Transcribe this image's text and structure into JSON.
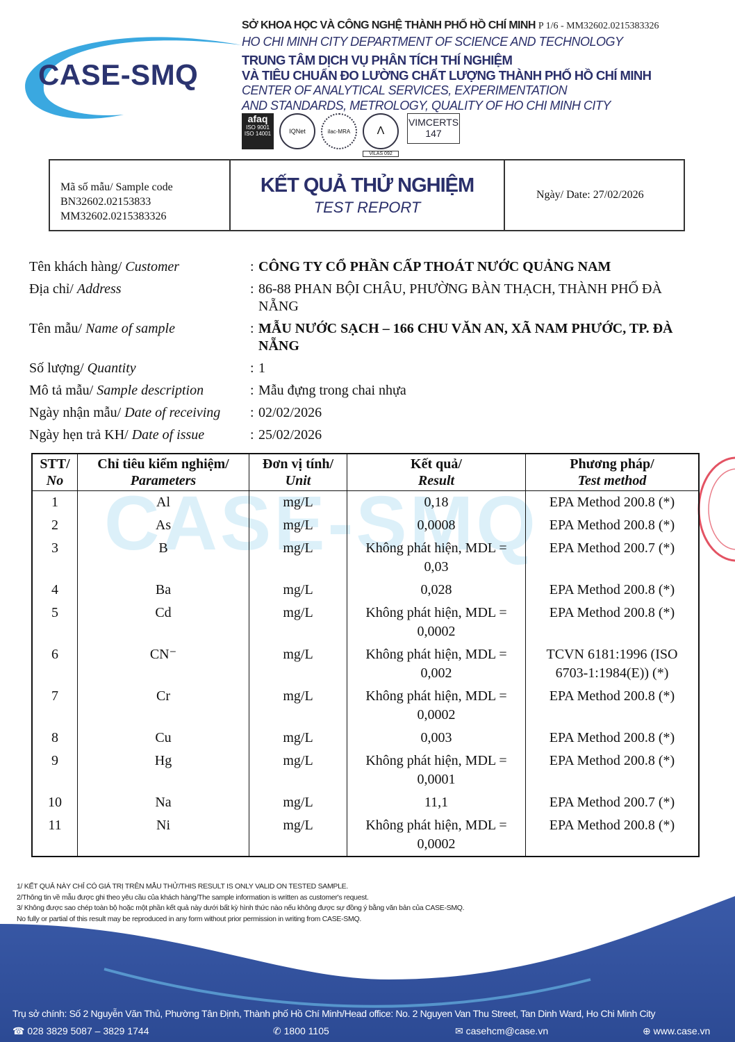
{
  "header": {
    "logo_text": "CASE-SMQ",
    "dept_vn": "SỞ KHOA HỌC VÀ CÔNG NGHỆ THÀNH PHỐ HỒ CHÍ MINH",
    "page_ref": "P 1/6 - MM32602.0215383326",
    "dept_en": "HO CHI MINH CITY DEPARTMENT OF SCIENCE AND TECHNOLOGY",
    "center_vn_1": "TRUNG TÂM DỊCH VỤ PHÂN TÍCH THÍ NGHIỆM",
    "center_vn_2": "VÀ TIÊU CHUẨN ĐO LƯỜNG CHẤT LƯỢNG THÀNH PHỐ HỒ CHÍ MINH",
    "center_en_1": "CENTER OF ANALYTICAL SERVICES, EXPERIMENTATION",
    "center_en_2": "AND STANDARDS, METROLOGY, QUALITY OF HO CHI MINH CITY",
    "certs": {
      "afaq": "afaq",
      "afaq_sub": "ISO 9001 ISO 14001",
      "iqnet": "IQNet",
      "ilac": "ilac-MRA",
      "boa": "VILAS 092",
      "vimcerts": "VIMCERTS",
      "vimcerts_no": "147"
    }
  },
  "report_box": {
    "sample_code_label": "Mã số mẫu/ Sample code",
    "sample_code_1": "BN32602.02153833",
    "sample_code_2": "MM32602.0215383326",
    "title_vn": "KẾT QUẢ THỬ NGHIỆM",
    "title_en": "TEST REPORT",
    "date": "Ngày/ Date: 27/02/2026"
  },
  "info": [
    {
      "label_vn": "Tên khách hàng/ ",
      "label_en": "Customer",
      "value": "CÔNG TY CỔ PHẦN CẤP THOÁT NƯỚC QUẢNG NAM",
      "bold": true
    },
    {
      "label_vn": "Địa chỉ/ ",
      "label_en": "Address",
      "value": "86-88 PHAN BỘI CHÂU, PHƯỜNG BÀN THẠCH, THÀNH PHỐ ĐÀ NẴNG",
      "bold": false
    },
    {
      "label_vn": "Tên mẫu/ ",
      "label_en": "Name of sample",
      "value": "MẪU NƯỚC SẠCH – 166 CHU VĂN AN, XÃ NAM PHƯỚC, TP. ĐÀ NẴNG",
      "bold": true
    },
    {
      "label_vn": "Số lượng/ ",
      "label_en": "Quantity",
      "value": "1",
      "bold": false
    },
    {
      "label_vn": "Mô tả mẫu/ ",
      "label_en": "Sample description",
      "value": "Mẫu đựng trong chai nhựa",
      "bold": false
    },
    {
      "label_vn": "Ngày nhận mẫu/ ",
      "label_en": "Date of receiving",
      "value": "02/02/2026",
      "bold": false
    },
    {
      "label_vn": "Ngày hẹn trả KH/ ",
      "label_en": "Date of issue",
      "value": "25/02/2026",
      "bold": false
    }
  ],
  "table": {
    "headers": [
      {
        "vn": "STT/",
        "en": "No"
      },
      {
        "vn": "Chỉ tiêu kiểm nghiệm/",
        "en": "Parameters"
      },
      {
        "vn": "Đơn vị tính/",
        "en": "Unit"
      },
      {
        "vn": "Kết quả/",
        "en": "Result"
      },
      {
        "vn": "Phương pháp/",
        "en": "Test method"
      }
    ],
    "rows": [
      {
        "no": "1",
        "param": "Al",
        "unit": "mg/L",
        "result": "0,18",
        "method": "EPA Method 200.8 (*)"
      },
      {
        "no": "2",
        "param": "As",
        "unit": "mg/L",
        "result": "0,0008",
        "method": "EPA Method 200.8 (*)"
      },
      {
        "no": "3",
        "param": "B",
        "unit": "mg/L",
        "result": "Không phát hiện, MDL = 0,03",
        "method": "EPA Method 200.7 (*)"
      },
      {
        "no": "4",
        "param": "Ba",
        "unit": "mg/L",
        "result": "0,028",
        "method": "EPA Method 200.8 (*)"
      },
      {
        "no": "5",
        "param": "Cd",
        "unit": "mg/L",
        "result": "Không phát hiện, MDL = 0,0002",
        "method": "EPA Method 200.8 (*)"
      },
      {
        "no": "6",
        "param": "CN⁻",
        "unit": "mg/L",
        "result": "Không phát hiện, MDL = 0,002",
        "method": "TCVN 6181:1996 (ISO 6703-1:1984(E)) (*)"
      },
      {
        "no": "7",
        "param": "Cr",
        "unit": "mg/L",
        "result": "Không phát hiện, MDL = 0,0002",
        "method": "EPA Method 200.8 (*)"
      },
      {
        "no": "8",
        "param": "Cu",
        "unit": "mg/L",
        "result": "0,003",
        "method": "EPA Method 200.8 (*)"
      },
      {
        "no": "9",
        "param": "Hg",
        "unit": "mg/L",
        "result": "Không phát hiện, MDL = 0,0001",
        "method": "EPA Method 200.8 (*)"
      },
      {
        "no": "10",
        "param": "Na",
        "unit": "mg/L",
        "result": "11,1",
        "method": "EPA Method 200.7 (*)"
      },
      {
        "no": "11",
        "param": "Ni",
        "unit": "mg/L",
        "result": "Không phát hiện, MDL = 0,0002",
        "method": "EPA Method 200.8 (*)"
      }
    ]
  },
  "watermark": "CASE-SMQ",
  "notes": [
    "1/ KẾT QUẢ NÀY CHỈ CÓ GIÁ TRỊ TRÊN MẪU THỬ/THIS RESULT IS ONLY VALID ON TESTED SAMPLE.",
    "2/Thông tin về mẫu được ghi theo yêu cầu của khách hàng/The sample information is written as customer's request.",
    "3/ Không được sao chép toàn bộ hoặc một phần kết quả này dưới bất kỳ hình thức nào nếu không được sự đồng ý bằng văn bản của CASE-SMQ.",
    "No fully or partial of this result may be reproduced in any form without prior permission in writing from CASE-SMQ."
  ],
  "footer": {
    "address": "Trụ sở chính: Số 2 Nguyễn Văn Thủ, Phường Tân Định, Thành phố Hồ Chí Minh/Head office: No. 2 Nguyen Van Thu Street, Tan Dinh Ward, Ho Chi Minh City",
    "phone": "028 3829 5087 – 3829 1744",
    "hotline": "1800 1105",
    "email": "casehcm@case.vn",
    "website": "www.case.vn"
  },
  "colors": {
    "brand_navy": "#2a2f6a",
    "footer_blue": "#2f4f99",
    "stamp_red": "#dc283c"
  }
}
